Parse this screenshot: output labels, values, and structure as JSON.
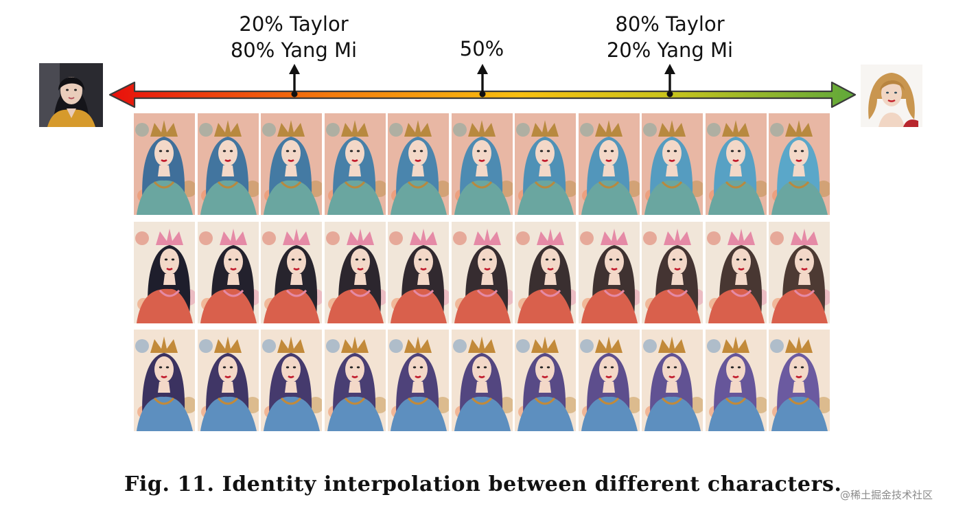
{
  "figure": {
    "left_photo": {
      "subject": "portrait photo of Yang Mi",
      "icon": "portrait-photo-icon"
    },
    "right_photo": {
      "subject": "portrait photo of Taylor",
      "icon": "portrait-photo-icon"
    },
    "scale": {
      "gradient_colors": [
        "#e8100c",
        "#f47c0c",
        "#f8bf0f",
        "#c9c41c",
        "#5fa83a"
      ],
      "marks": [
        {
          "id": "20",
          "position_fraction": 0.25,
          "line1": "20% Taylor",
          "line2": "80% Yang Mi"
        },
        {
          "id": "50",
          "position_fraction": 0.5,
          "line1": "50%",
          "line2": ""
        },
        {
          "id": "80",
          "position_fraction": 0.75,
          "line1": "80% Taylor",
          "line2": "20% Yang Mi"
        }
      ]
    },
    "grid": {
      "rows": 3,
      "columns": 11,
      "row_styles": [
        {
          "hair": "#3f6f9a",
          "hair_to_taylor": "#5aa7c9",
          "bg": "#e8b7a4",
          "dress": "#6aa6a0",
          "headpiece": "#b8893f"
        },
        {
          "hair": "#1e1e2c",
          "hair_to_taylor": "#4d3a33",
          "bg": "#f1e6d9",
          "dress": "#d9604c",
          "headpiece": "#e58aa6"
        },
        {
          "hair": "#3b3260",
          "hair_to_taylor": "#6b5aa0",
          "bg": "#f3e3d3",
          "dress": "#5d8fbf",
          "headpiece": "#c28a3a"
        }
      ]
    },
    "caption": "Fig. 11. Identity interpolation between different characters.",
    "watermark": "@稀土掘金技术社区"
  }
}
